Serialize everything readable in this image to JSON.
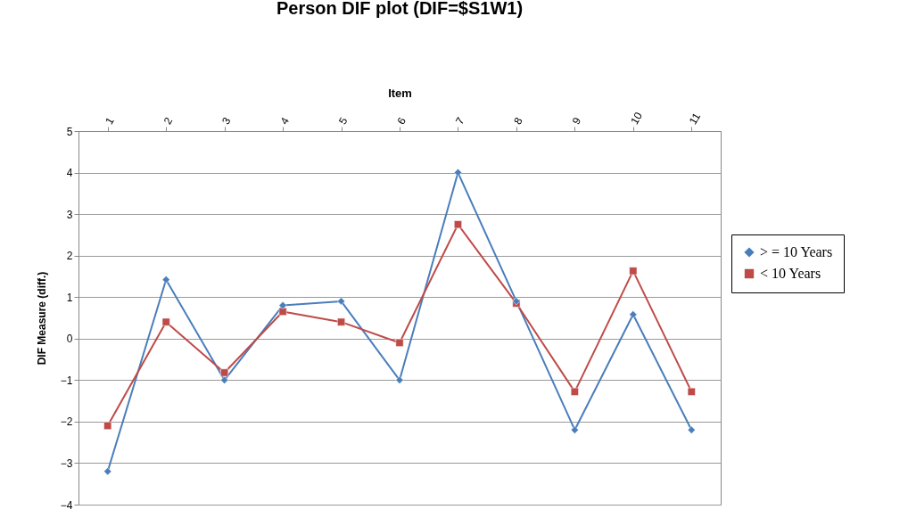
{
  "chart_data": {
    "type": "line",
    "title": "Person DIF plot (DIF=$S1W1)",
    "xlabel": "Item",
    "ylabel": "DIF Measure (diff.)",
    "categories": [
      "1",
      "2",
      "3",
      "4",
      "5",
      "6",
      "7",
      "8",
      "9",
      "10",
      "11"
    ],
    "series": [
      {
        "name": "> = 10 Years",
        "color": "#4a7ebb",
        "marker": "diamond",
        "values": [
          -3.2,
          1.42,
          -1.0,
          0.8,
          0.9,
          -1.0,
          4.0,
          0.9,
          -2.2,
          0.58,
          -2.2
        ]
      },
      {
        "name": "< 10 Years",
        "color": "#be4b48",
        "marker": "square",
        "values": [
          -2.1,
          0.4,
          -0.82,
          0.65,
          0.4,
          -0.1,
          2.75,
          0.85,
          -1.28,
          1.63,
          -1.28
        ]
      }
    ],
    "ylim": [
      -4,
      5
    ],
    "yticks": [
      -4,
      -3,
      -2,
      -1,
      0,
      1,
      2,
      3,
      4,
      5
    ],
    "grid": "y",
    "legend": "right"
  }
}
